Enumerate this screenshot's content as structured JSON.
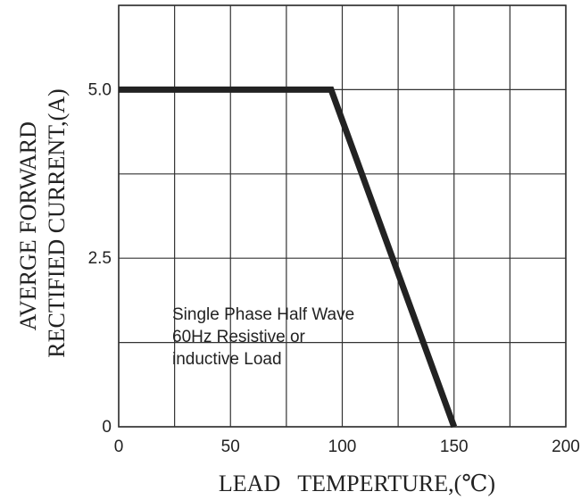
{
  "chart_data": {
    "type": "line",
    "title": "",
    "xlabel": "LEAD   TEMPERTURE,(℃)",
    "ylabel_line1": "AVERGE FORWARD",
    "ylabel_line2": "RECTIFIED CURRENT,(A)",
    "xlim": [
      0,
      200
    ],
    "ylim": [
      0,
      5.0
    ],
    "ylim_top_of_frame": 6.25,
    "x_ticks": [
      0,
      50,
      100,
      150,
      200
    ],
    "x_tick_labels": [
      "0",
      "50",
      "100",
      "150",
      "200"
    ],
    "y_ticks": [
      0,
      2.5,
      5.0
    ],
    "y_tick_labels": [
      "0",
      "2.5",
      "5.0"
    ],
    "x_grid": [
      0,
      25,
      50,
      75,
      100,
      125,
      150,
      175,
      200
    ],
    "y_grid": [
      0,
      1.25,
      2.5,
      3.75,
      5.0,
      6.25
    ],
    "grid": true,
    "series": [
      {
        "x": [
          0,
          95,
          150
        ],
        "y": [
          5.0,
          5.0,
          0
        ]
      }
    ],
    "annotation_lines": [
      "Single Phase Half Wave",
      "60Hz Resistive or",
      "inductive Load"
    ],
    "line_color": "#222222"
  }
}
